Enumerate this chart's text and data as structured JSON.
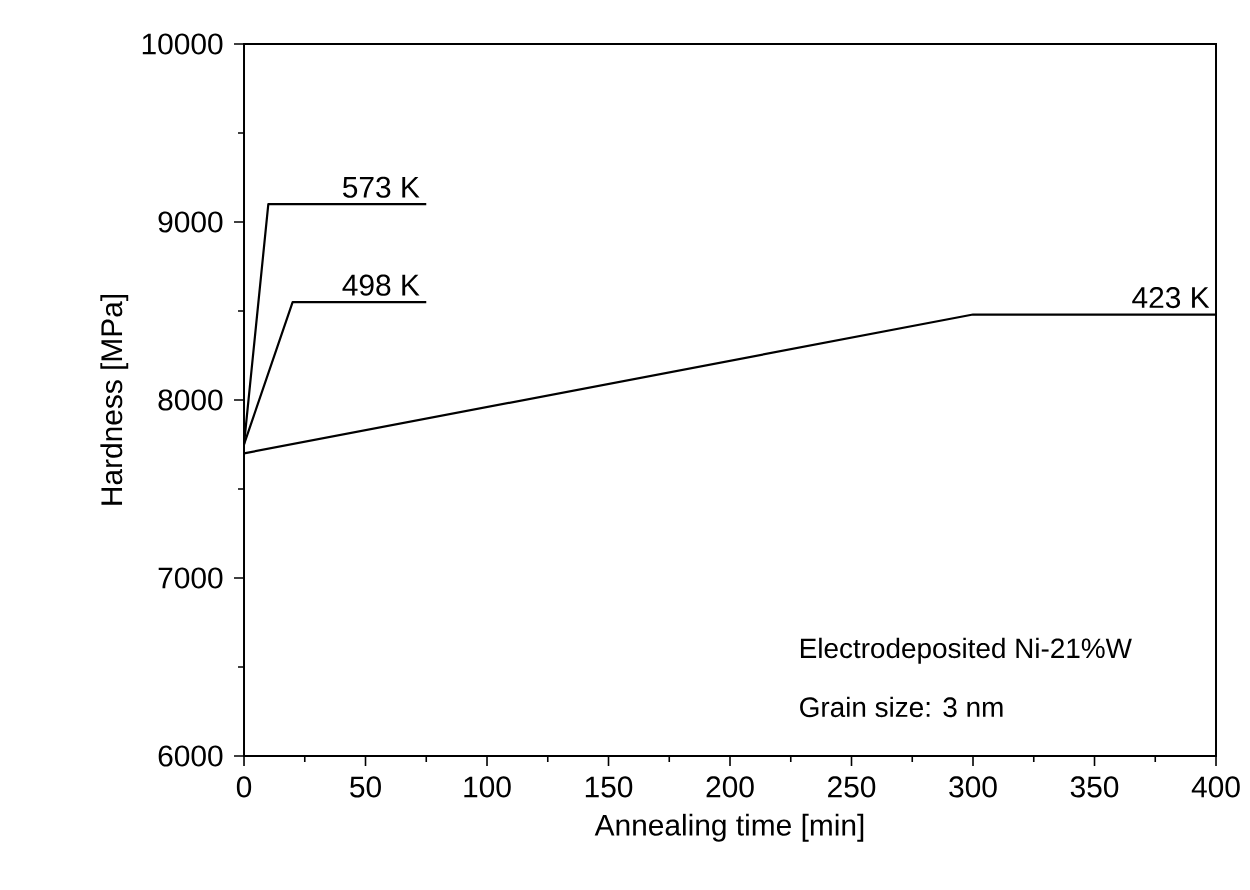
{
  "chart_data": {
    "type": "line",
    "xlabel": "Annealing time [min]",
    "ylabel": "Hardness [MPa]",
    "xlim": [
      0,
      400
    ],
    "ylim": [
      6000,
      10000
    ],
    "xticks": [
      0,
      50,
      100,
      150,
      200,
      250,
      300,
      350,
      400
    ],
    "yticks": [
      6000,
      7000,
      8000,
      9000,
      10000
    ],
    "series": [
      {
        "name": "573 K",
        "color": "#000000",
        "x": [
          0,
          10,
          75
        ],
        "values": [
          7750,
          9100,
          9100
        ]
      },
      {
        "name": "498 K",
        "color": "#000000",
        "x": [
          0,
          20,
          75
        ],
        "values": [
          7750,
          8550,
          8550
        ]
      },
      {
        "name": "423 K",
        "color": "#000000",
        "x": [
          0,
          300,
          400
        ],
        "values": [
          7700,
          8480,
          8480
        ]
      }
    ],
    "annotations": [
      "Electrodeposited Ni-21%W",
      "Grain size: 3 nm"
    ],
    "line_style": "solid",
    "marker": "none",
    "grid": false,
    "legend": false
  }
}
